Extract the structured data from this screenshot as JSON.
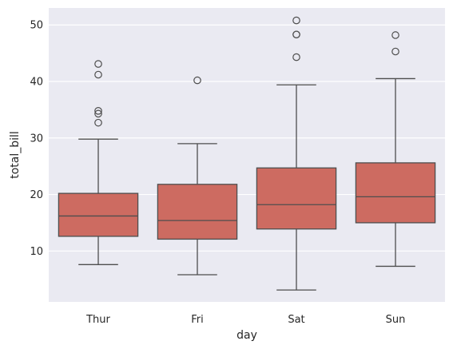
{
  "chart_data": {
    "type": "box",
    "xlabel": "day",
    "ylabel": "total_bill",
    "ylim": [
      1,
      53
    ],
    "yticks": [
      10,
      20,
      30,
      40,
      50
    ],
    "grid": true,
    "categories": [
      "Thur",
      "Fri",
      "Sat",
      "Sun"
    ],
    "boxes": [
      {
        "category": "Thur",
        "whisker_low": 7.6,
        "q1": 12.6,
        "median": 16.2,
        "q3": 20.2,
        "whisker_high": 29.8,
        "outliers": [
          32.7,
          34.3,
          34.8,
          41.2,
          43.1
        ]
      },
      {
        "category": "Fri",
        "whisker_low": 5.8,
        "q1": 12.1,
        "median": 15.4,
        "q3": 21.8,
        "whisker_high": 29.0,
        "outliers": [
          40.2
        ]
      },
      {
        "category": "Sat",
        "whisker_low": 3.1,
        "q1": 13.9,
        "median": 18.2,
        "q3": 24.7,
        "whisker_high": 39.4,
        "outliers": [
          44.3,
          48.3,
          48.3,
          50.8
        ]
      },
      {
        "category": "Sun",
        "whisker_low": 7.3,
        "q1": 15.0,
        "median": 19.6,
        "q3": 25.6,
        "whisker_high": 40.5,
        "outliers": [
          45.3,
          48.2
        ]
      }
    ],
    "colors": {
      "box_fill": "#cd6b61",
      "box_edge": "#4e4e4e",
      "background": "#eaeaf2",
      "grid": "#ffffff"
    }
  }
}
